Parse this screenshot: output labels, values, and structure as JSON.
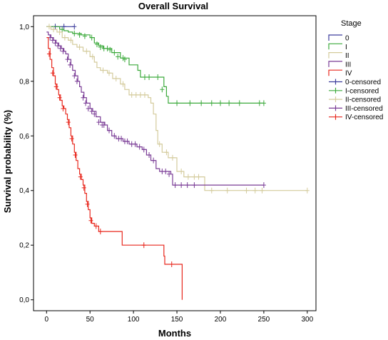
{
  "chart_data": {
    "type": "line",
    "title": "Overall Survival",
    "xlabel": "Months",
    "ylabel": "Survival probability (%)",
    "xlim": [
      -15,
      310
    ],
    "ylim": [
      -0.04,
      1.04
    ],
    "x_ticks": [
      0,
      50,
      100,
      150,
      200,
      250,
      300
    ],
    "x_tick_labels": [
      "0",
      "50",
      "100",
      "150",
      "200",
      "250",
      "300"
    ],
    "y_ticks": [
      0,
      0.2,
      0.4,
      0.6,
      0.8,
      1.0
    ],
    "y_tick_labels": [
      "0,0",
      "0,2",
      "0,4",
      "0,6",
      "0,8",
      "1,0"
    ],
    "grid": false,
    "legend_placement": "right",
    "legend_title": "Stage",
    "legend": [
      {
        "label": "0",
        "kind": "line",
        "color": "#3c3c9c"
      },
      {
        "label": "I",
        "kind": "line",
        "color": "#3caa3c"
      },
      {
        "label": "II",
        "kind": "line",
        "color": "#d4cb9c"
      },
      {
        "label": "III",
        "kind": "line",
        "color": "#7a3c96"
      },
      {
        "label": "IV",
        "kind": "line",
        "color": "#e8281e"
      },
      {
        "label": "0-censored",
        "kind": "censor",
        "color": "#3c3c9c"
      },
      {
        "label": "I-censored",
        "kind": "censor",
        "color": "#3caa3c"
      },
      {
        "label": "II-censored",
        "kind": "censor",
        "color": "#d4cb9c"
      },
      {
        "label": "III-censored",
        "kind": "censor",
        "color": "#7a3c96"
      },
      {
        "label": "IV-censored",
        "kind": "censor",
        "color": "#e8281e"
      }
    ],
    "series": [
      {
        "name": "0",
        "color": "#3c3c9c",
        "steps": [
          [
            0,
            1.0
          ],
          [
            32,
            1.0
          ]
        ],
        "censored": [
          [
            10,
            1.0
          ],
          [
            20,
            1.0
          ],
          [
            32,
            1.0
          ]
        ]
      },
      {
        "name": "I",
        "color": "#3caa3c",
        "steps": [
          [
            0,
            1.0
          ],
          [
            15,
            0.99
          ],
          [
            20,
            0.985
          ],
          [
            25,
            0.98
          ],
          [
            30,
            0.975
          ],
          [
            40,
            0.97
          ],
          [
            50,
            0.96
          ],
          [
            55,
            0.94
          ],
          [
            60,
            0.93
          ],
          [
            65,
            0.92
          ],
          [
            75,
            0.905
          ],
          [
            85,
            0.885
          ],
          [
            95,
            0.86
          ],
          [
            105,
            0.84
          ],
          [
            108,
            0.815
          ],
          [
            135,
            0.78
          ],
          [
            138,
            0.745
          ],
          [
            140,
            0.72
          ],
          [
            250,
            0.72
          ]
        ],
        "censored": [
          [
            18,
            0.99
          ],
          [
            32,
            0.975
          ],
          [
            38,
            0.97
          ],
          [
            44,
            0.965
          ],
          [
            52,
            0.96
          ],
          [
            58,
            0.935
          ],
          [
            62,
            0.925
          ],
          [
            66,
            0.92
          ],
          [
            70,
            0.92
          ],
          [
            73,
            0.915
          ],
          [
            78,
            0.905
          ],
          [
            82,
            0.89
          ],
          [
            88,
            0.885
          ],
          [
            90,
            0.88
          ],
          [
            113,
            0.815
          ],
          [
            118,
            0.815
          ],
          [
            128,
            0.815
          ],
          [
            133,
            0.77
          ],
          [
            150,
            0.72
          ],
          [
            165,
            0.72
          ],
          [
            178,
            0.72
          ],
          [
            190,
            0.72
          ],
          [
            200,
            0.72
          ],
          [
            210,
            0.72
          ],
          [
            222,
            0.72
          ],
          [
            245,
            0.72
          ],
          [
            250,
            0.72
          ]
        ]
      },
      {
        "name": "II",
        "color": "#d4cb9c",
        "steps": [
          [
            0,
            1.0
          ],
          [
            5,
            0.99
          ],
          [
            12,
            0.98
          ],
          [
            18,
            0.96
          ],
          [
            25,
            0.95
          ],
          [
            30,
            0.935
          ],
          [
            35,
            0.925
          ],
          [
            42,
            0.91
          ],
          [
            50,
            0.89
          ],
          [
            55,
            0.87
          ],
          [
            58,
            0.85
          ],
          [
            62,
            0.84
          ],
          [
            70,
            0.83
          ],
          [
            76,
            0.81
          ],
          [
            85,
            0.79
          ],
          [
            90,
            0.77
          ],
          [
            95,
            0.75
          ],
          [
            117,
            0.74
          ],
          [
            120,
            0.72
          ],
          [
            123,
            0.68
          ],
          [
            126,
            0.62
          ],
          [
            128,
            0.57
          ],
          [
            133,
            0.54
          ],
          [
            140,
            0.52
          ],
          [
            150,
            0.47
          ],
          [
            158,
            0.45
          ],
          [
            178,
            0.45
          ],
          [
            182,
            0.4
          ],
          [
            300,
            0.4
          ]
        ],
        "censored": [
          [
            3,
            1.0
          ],
          [
            8,
            0.99
          ],
          [
            15,
            0.98
          ],
          [
            21,
            0.96
          ],
          [
            28,
            0.95
          ],
          [
            38,
            0.925
          ],
          [
            46,
            0.91
          ],
          [
            53,
            0.89
          ],
          [
            65,
            0.84
          ],
          [
            72,
            0.83
          ],
          [
            80,
            0.81
          ],
          [
            88,
            0.79
          ],
          [
            98,
            0.75
          ],
          [
            103,
            0.75
          ],
          [
            108,
            0.75
          ],
          [
            113,
            0.75
          ],
          [
            130,
            0.57
          ],
          [
            138,
            0.54
          ],
          [
            145,
            0.52
          ],
          [
            155,
            0.47
          ],
          [
            163,
            0.45
          ],
          [
            170,
            0.45
          ],
          [
            175,
            0.45
          ],
          [
            190,
            0.4
          ],
          [
            208,
            0.4
          ],
          [
            230,
            0.4
          ],
          [
            240,
            0.4
          ],
          [
            248,
            0.4
          ],
          [
            300,
            0.4
          ]
        ]
      },
      {
        "name": "III",
        "color": "#7a3c96",
        "steps": [
          [
            0,
            0.98
          ],
          [
            2,
            0.97
          ],
          [
            5,
            0.96
          ],
          [
            8,
            0.95
          ],
          [
            11,
            0.94
          ],
          [
            14,
            0.93
          ],
          [
            17,
            0.92
          ],
          [
            20,
            0.91
          ],
          [
            22,
            0.9
          ],
          [
            25,
            0.88
          ],
          [
            28,
            0.86
          ],
          [
            30,
            0.84
          ],
          [
            33,
            0.82
          ],
          [
            36,
            0.8
          ],
          [
            38,
            0.78
          ],
          [
            40,
            0.76
          ],
          [
            43,
            0.74
          ],
          [
            46,
            0.72
          ],
          [
            50,
            0.7
          ],
          [
            53,
            0.69
          ],
          [
            57,
            0.67
          ],
          [
            62,
            0.65
          ],
          [
            67,
            0.64
          ],
          [
            70,
            0.62
          ],
          [
            75,
            0.6
          ],
          [
            80,
            0.59
          ],
          [
            88,
            0.58
          ],
          [
            95,
            0.57
          ],
          [
            104,
            0.56
          ],
          [
            110,
            0.55
          ],
          [
            115,
            0.53
          ],
          [
            120,
            0.51
          ],
          [
            126,
            0.48
          ],
          [
            130,
            0.47
          ],
          [
            143,
            0.46
          ],
          [
            145,
            0.42
          ],
          [
            250,
            0.42
          ]
        ],
        "censored": [
          [
            4,
            0.96
          ],
          [
            7,
            0.95
          ],
          [
            10,
            0.94
          ],
          [
            13,
            0.93
          ],
          [
            16,
            0.92
          ],
          [
            19,
            0.91
          ],
          [
            24,
            0.88
          ],
          [
            27,
            0.86
          ],
          [
            32,
            0.82
          ],
          [
            35,
            0.8
          ],
          [
            42,
            0.74
          ],
          [
            45,
            0.72
          ],
          [
            48,
            0.7
          ],
          [
            52,
            0.69
          ],
          [
            55,
            0.68
          ],
          [
            60,
            0.65
          ],
          [
            64,
            0.64
          ],
          [
            66,
            0.64
          ],
          [
            72,
            0.62
          ],
          [
            78,
            0.6
          ],
          [
            83,
            0.59
          ],
          [
            86,
            0.59
          ],
          [
            90,
            0.58
          ],
          [
            93,
            0.58
          ],
          [
            98,
            0.57
          ],
          [
            102,
            0.57
          ],
          [
            107,
            0.56
          ],
          [
            112,
            0.55
          ],
          [
            118,
            0.53
          ],
          [
            123,
            0.51
          ],
          [
            133,
            0.47
          ],
          [
            137,
            0.47
          ],
          [
            141,
            0.46
          ],
          [
            148,
            0.42
          ],
          [
            155,
            0.42
          ],
          [
            162,
            0.42
          ],
          [
            170,
            0.42
          ],
          [
            250,
            0.42
          ]
        ]
      },
      {
        "name": "IV",
        "color": "#e8281e",
        "steps": [
          [
            0,
            0.96
          ],
          [
            2,
            0.92
          ],
          [
            4,
            0.88
          ],
          [
            6,
            0.85
          ],
          [
            8,
            0.82
          ],
          [
            10,
            0.79
          ],
          [
            12,
            0.77
          ],
          [
            14,
            0.75
          ],
          [
            16,
            0.73
          ],
          [
            18,
            0.71
          ],
          [
            20,
            0.7
          ],
          [
            22,
            0.68
          ],
          [
            24,
            0.66
          ],
          [
            26,
            0.63
          ],
          [
            28,
            0.6
          ],
          [
            30,
            0.57
          ],
          [
            32,
            0.54
          ],
          [
            34,
            0.51
          ],
          [
            36,
            0.48
          ],
          [
            38,
            0.46
          ],
          [
            40,
            0.44
          ],
          [
            42,
            0.42
          ],
          [
            44,
            0.39
          ],
          [
            46,
            0.36
          ],
          [
            48,
            0.33
          ],
          [
            50,
            0.3
          ],
          [
            52,
            0.28
          ],
          [
            55,
            0.27
          ],
          [
            60,
            0.25
          ],
          [
            87,
            0.2
          ],
          [
            110,
            0.2
          ],
          [
            112,
            0.2
          ],
          [
            125,
            0.2
          ],
          [
            135,
            0.16
          ],
          [
            136,
            0.13
          ],
          [
            156,
            0.13
          ],
          [
            156,
            0.0
          ]
        ],
        "censored": [
          [
            3,
            0.9
          ],
          [
            7,
            0.83
          ],
          [
            11,
            0.78
          ],
          [
            15,
            0.74
          ],
          [
            19,
            0.7
          ],
          [
            25,
            0.65
          ],
          [
            29,
            0.59
          ],
          [
            33,
            0.53
          ],
          [
            39,
            0.45
          ],
          [
            43,
            0.41
          ],
          [
            47,
            0.35
          ],
          [
            51,
            0.29
          ],
          [
            57,
            0.27
          ],
          [
            62,
            0.25
          ],
          [
            112,
            0.2
          ],
          [
            144,
            0.13
          ]
        ]
      }
    ]
  }
}
